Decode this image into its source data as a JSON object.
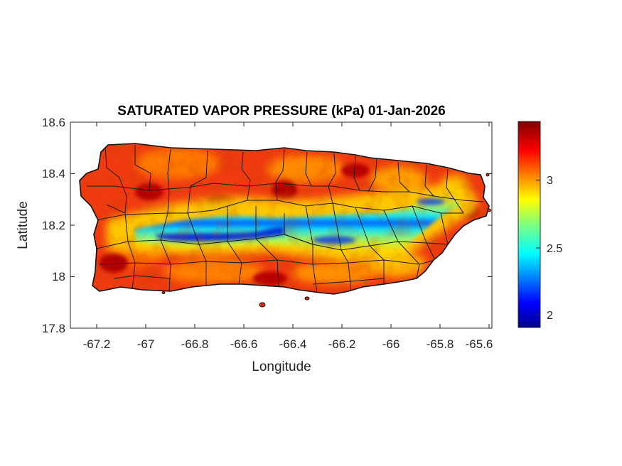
{
  "figure": {
    "title": "SATURATED VAPOR PRESSURE (kPa) 01-Jan-2026",
    "xlabel": "Longitude",
    "ylabel": "Latitude",
    "x_ticks": [
      "-67.2",
      "-67",
      "-66.8",
      "-66.6",
      "-66.4",
      "-66.2",
      "-66",
      "-65.8",
      "-65.6"
    ],
    "y_ticks": [
      "18.6",
      "18.4",
      "18.2",
      "18",
      "17.8"
    ]
  },
  "colorbar": {
    "ticks": [
      "3",
      "2.5",
      "2"
    ],
    "colormap": "jet",
    "range": [
      1.9,
      3.45
    ]
  },
  "chart_data": {
    "type": "heatmap",
    "title": "SATURATED VAPOR PRESSURE (kPa) 01-Jan-2026",
    "xlabel": "Longitude",
    "ylabel": "Latitude",
    "xlim": [
      -67.3,
      -65.58
    ],
    "ylim": [
      17.8,
      18.6
    ],
    "x_tick_values": [
      -67.2,
      -67,
      -66.8,
      -66.6,
      -66.4,
      -66.2,
      -66,
      -65.8,
      -65.6
    ],
    "y_tick_values": [
      17.8,
      18,
      18.2,
      18.4,
      18.6
    ],
    "colorbar_ticks": [
      2,
      2.5,
      3
    ],
    "colorbar_range": [
      1.9,
      3.45
    ],
    "colormap": "jet",
    "region": "Puerto Rico",
    "pattern": "low values (about 1.9–2.5 kPa, blue/cyan) along the central mountain ridge from about -66.95 to -65.75 longitude near latitude 18.15–18.3; high values (about 3.2–3.45 kPa, red) along the coasts and in the southwest and northeast",
    "low_band_centerline": [
      {
        "lon": -66.95,
        "lat": 18.18
      },
      {
        "lon": -66.8,
        "lat": 18.15
      },
      {
        "lon": -66.65,
        "lat": 18.165
      },
      {
        "lon": -66.5,
        "lat": 18.18
      },
      {
        "lon": -66.35,
        "lat": 18.175
      },
      {
        "lon": -66.2,
        "lat": 18.155
      },
      {
        "lon": -66.1,
        "lat": 18.14
      },
      {
        "lon": -66.0,
        "lat": 18.17
      },
      {
        "lon": -65.9,
        "lat": 18.24
      },
      {
        "lon": -65.82,
        "lat": 18.29
      },
      {
        "lon": -65.75,
        "lat": 18.31
      }
    ]
  }
}
